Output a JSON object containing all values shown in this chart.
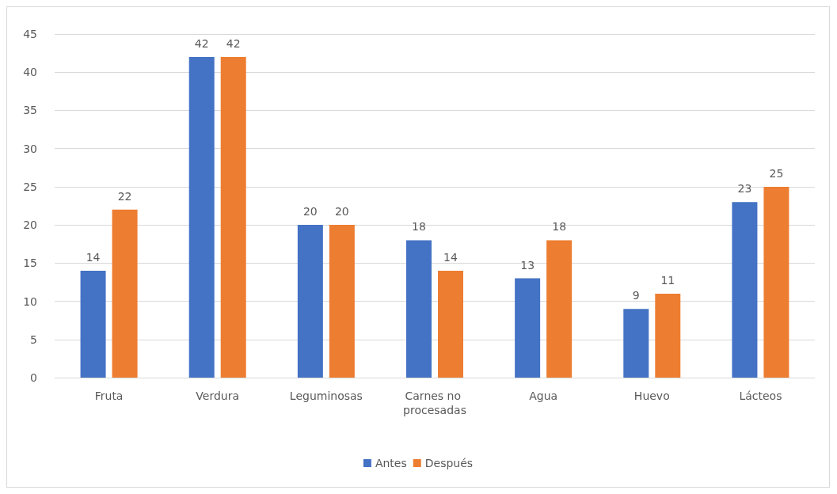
{
  "chart_data": {
    "type": "bar",
    "categories": [
      "Fruta",
      "Verdura",
      "Leguminosas",
      "Carnes no procesadas",
      "Agua",
      "Huevo",
      "Lácteos"
    ],
    "series": [
      {
        "name": "Antes",
        "color": "#4472c4",
        "values": [
          14,
          42,
          20,
          18,
          13,
          9,
          23
        ]
      },
      {
        "name": "Después",
        "color": "#ed7d31",
        "values": [
          22,
          42,
          20,
          14,
          18,
          11,
          25
        ]
      }
    ],
    "ylim": [
      0,
      45
    ],
    "yticks": [
      0,
      5,
      10,
      15,
      20,
      25,
      30,
      35,
      40,
      45
    ],
    "grid": "y",
    "legend": "bottom",
    "data_labels": true
  }
}
